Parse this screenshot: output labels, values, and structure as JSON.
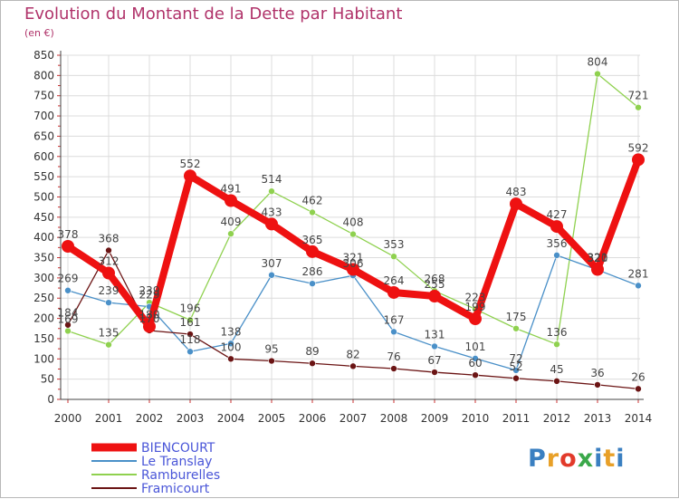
{
  "title": "Evolution du Montant de la Dette par Habitant",
  "subtitle": "(en €)",
  "logo": {
    "text": "Proxiti",
    "colors": [
      "#3a7fc1",
      "#e8a028",
      "#e23a2a",
      "#3aa84a",
      "#3a7fc1",
      "#e8a028",
      "#3a7fc1"
    ]
  },
  "chart_data": {
    "type": "line",
    "title": "Evolution du Montant de la Dette par Habitant",
    "ylabel": "(en €)",
    "xlabel": "",
    "ylim": [
      0,
      850
    ],
    "yticks": [
      0,
      50,
      100,
      150,
      200,
      250,
      300,
      350,
      400,
      450,
      500,
      550,
      600,
      650,
      700,
      750,
      800,
      850
    ],
    "x": [
      "2000",
      "2001",
      "2002",
      "2003",
      "2004",
      "2005",
      "2006",
      "2007",
      "2008",
      "2009",
      "2010",
      "2011",
      "2012",
      "2013",
      "2014"
    ],
    "grid": true,
    "legend": "bottom-left",
    "series": [
      {
        "name": "Ramburelles",
        "color": "#8fd14f",
        "width": 1.3,
        "marker": 3.5,
        "values": [
          169,
          135,
          239,
          196,
          409,
          514,
          462,
          408,
          353,
          268,
          223,
          175,
          136,
          804,
          721
        ]
      },
      {
        "name": "Le Translay",
        "color": "#4a90c8",
        "width": 1.3,
        "marker": 3.5,
        "values": [
          269,
          239,
          229,
          118,
          138,
          307,
          286,
          306,
          167,
          131,
          101,
          72,
          356,
          320,
          281
        ]
      },
      {
        "name": "Framicourt",
        "color": "#6b1414",
        "width": 1.3,
        "marker": 3.5,
        "values": [
          184,
          368,
          170,
          161,
          100,
          95,
          89,
          82,
          76,
          67,
          60,
          52,
          45,
          36,
          26
        ]
      },
      {
        "name": "BIENCOURT",
        "color": "#ee1111",
        "width": 8,
        "marker": 7,
        "values": [
          378,
          312,
          180,
          552,
          491,
          433,
          365,
          321,
          264,
          255,
          199,
          483,
          427,
          321,
          592
        ]
      }
    ]
  }
}
